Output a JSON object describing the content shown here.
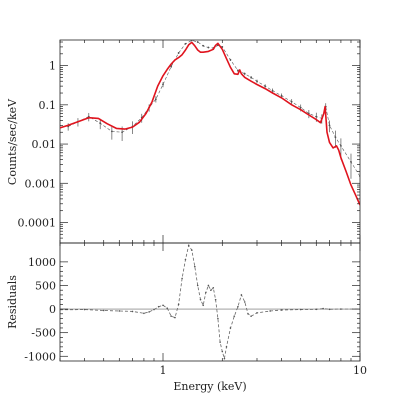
{
  "chart_data": [
    {
      "type": "line",
      "panel": "spectrum",
      "xlabel": "Energy (keV)",
      "ylabel": "Counts/sec/keV",
      "xscale": "log",
      "yscale": "log",
      "xlim": [
        0.3,
        10
      ],
      "ylim": [
        3e-05,
        4.5
      ],
      "grid": false,
      "colors": {
        "data": "#555555",
        "model": "#e0141e"
      },
      "y_tick_labels": [
        {
          "value": 1,
          "label": "1"
        },
        {
          "value": 0.1,
          "label": "0.1"
        },
        {
          "value": 0.01,
          "label": "0.01"
        },
        {
          "value": 0.001,
          "label": "0.001"
        },
        {
          "value": 0.0001,
          "label": "0.0001"
        }
      ],
      "series": [
        {
          "role": "data",
          "style": "grey points with vertical error bars",
          "x": [
            0.33,
            0.37,
            0.42,
            0.48,
            0.55,
            0.62,
            0.7,
            0.78,
            0.85,
            0.92,
            1.0,
            1.1,
            1.2,
            1.3,
            1.4,
            1.5,
            1.6,
            1.7,
            1.8,
            1.9,
            2.0,
            2.2,
            2.4,
            2.6,
            2.8,
            3.0,
            3.3,
            3.6,
            4.0,
            4.5,
            5.0,
            5.5,
            6.0,
            6.4,
            6.7,
            7.0,
            7.5,
            8.0,
            9.0,
            10.0
          ],
          "y": [
            0.028,
            0.037,
            0.05,
            0.034,
            0.021,
            0.02,
            0.028,
            0.047,
            0.085,
            0.14,
            0.33,
            0.95,
            2.1,
            3.6,
            4.4,
            4.0,
            3.2,
            2.9,
            2.8,
            3.3,
            3.0,
            1.4,
            0.75,
            0.62,
            0.5,
            0.4,
            0.3,
            0.23,
            0.17,
            0.12,
            0.085,
            0.06,
            0.05,
            0.045,
            0.09,
            0.03,
            0.015,
            0.009,
            0.0035,
            0.0015
          ],
          "err": [
            0.006,
            0.009,
            0.012,
            0.01,
            0.008,
            0.008,
            0.01,
            0.012,
            0.018,
            0.025,
            0.05,
            0.08,
            0.12,
            0.15,
            0.17,
            0.17,
            0.15,
            0.13,
            0.13,
            0.15,
            0.14,
            0.09,
            0.06,
            0.05,
            0.045,
            0.04,
            0.035,
            0.03,
            0.025,
            0.02,
            0.017,
            0.014,
            0.013,
            0.012,
            0.02,
            0.01,
            0.007,
            0.005,
            0.0022,
            0.0011
          ]
        },
        {
          "role": "model",
          "style": "red solid line",
          "x": [
            0.3,
            0.33,
            0.37,
            0.42,
            0.47,
            0.52,
            0.58,
            0.64,
            0.7,
            0.76,
            0.82,
            0.88,
            0.94,
            1.0,
            1.05,
            1.1,
            1.15,
            1.2,
            1.25,
            1.3,
            1.35,
            1.4,
            1.45,
            1.5,
            1.55,
            1.6,
            1.7,
            1.8,
            1.85,
            1.9,
            2.0,
            2.1,
            2.2,
            2.3,
            2.4,
            2.45,
            2.5,
            2.6,
            2.8,
            3.0,
            3.3,
            3.6,
            4.0,
            4.5,
            5.0,
            5.5,
            6.0,
            6.3,
            6.55,
            6.65,
            6.8,
            7.0,
            7.3,
            7.6,
            7.8,
            8.0,
            8.5,
            9.0,
            9.5,
            10.0
          ],
          "y": [
            0.026,
            0.03,
            0.037,
            0.047,
            0.045,
            0.033,
            0.025,
            0.024,
            0.027,
            0.036,
            0.06,
            0.12,
            0.3,
            0.55,
            0.8,
            1.1,
            1.4,
            1.6,
            1.9,
            2.5,
            3.4,
            3.9,
            3.2,
            2.5,
            2.2,
            2.2,
            2.3,
            2.6,
            3.3,
            3.7,
            2.6,
            1.5,
            0.9,
            0.62,
            0.6,
            0.78,
            0.62,
            0.5,
            0.4,
            0.33,
            0.26,
            0.2,
            0.15,
            0.1,
            0.075,
            0.055,
            0.042,
            0.035,
            0.06,
            0.09,
            0.02,
            0.011,
            0.008,
            0.009,
            0.007,
            0.0045,
            0.002,
            0.0009,
            0.0005,
            0.00028
          ]
        }
      ]
    },
    {
      "type": "line",
      "panel": "residuals",
      "xlabel": "Energy (keV)",
      "ylabel": "Residuals",
      "xscale": "log",
      "xlim": [
        0.3,
        10
      ],
      "ylim": [
        -1100,
        1400
      ],
      "grid": false,
      "zero_line": true,
      "y_tick_labels": [
        {
          "value": 1000,
          "label": "1000"
        },
        {
          "value": 500,
          "label": "500"
        },
        {
          "value": 0,
          "label": "0"
        },
        {
          "value": -500,
          "label": "-500"
        },
        {
          "value": -1000,
          "label": "-1000"
        }
      ],
      "x_tick_labels": [
        {
          "value": 1,
          "label": "1"
        },
        {
          "value": 10,
          "label": "10"
        }
      ],
      "series": [
        {
          "role": "residuals",
          "style": "grey dashed line with points",
          "x": [
            0.3,
            0.4,
            0.5,
            0.6,
            0.7,
            0.8,
            0.85,
            0.9,
            0.95,
            1.0,
            1.05,
            1.1,
            1.15,
            1.2,
            1.25,
            1.3,
            1.35,
            1.4,
            1.45,
            1.5,
            1.55,
            1.6,
            1.65,
            1.7,
            1.75,
            1.8,
            1.85,
            1.9,
            1.95,
            2.0,
            2.05,
            2.1,
            2.2,
            2.3,
            2.4,
            2.5,
            2.6,
            2.7,
            2.8,
            3.0,
            3.5,
            4.0,
            5.0,
            6.0,
            6.5,
            7.0,
            8.0,
            10.0
          ],
          "y": [
            -15,
            -10,
            -30,
            -40,
            -50,
            -90,
            -60,
            -10,
            50,
            80,
            20,
            -150,
            -180,
            100,
            650,
            1050,
            1350,
            1250,
            900,
            500,
            200,
            80,
            350,
            500,
            400,
            450,
            200,
            -200,
            -700,
            -900,
            -1050,
            -800,
            -400,
            -150,
            50,
            300,
            150,
            -100,
            -150,
            -80,
            -40,
            -20,
            -10,
            -5,
            10,
            -5,
            0,
            0
          ]
        }
      ]
    }
  ]
}
